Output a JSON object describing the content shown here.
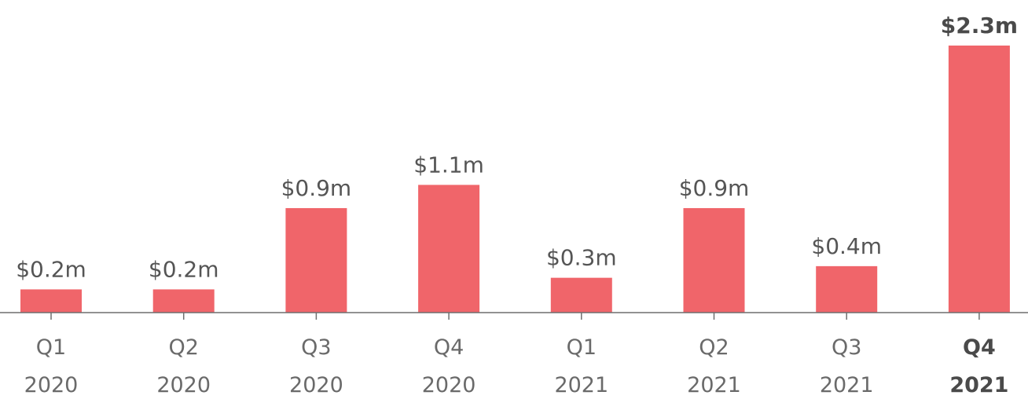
{
  "chart_data": {
    "type": "bar",
    "categories": [
      {
        "quarter": "Q1",
        "year": "2020"
      },
      {
        "quarter": "Q2",
        "year": "2020"
      },
      {
        "quarter": "Q3",
        "year": "2020"
      },
      {
        "quarter": "Q4",
        "year": "2020"
      },
      {
        "quarter": "Q1",
        "year": "2021"
      },
      {
        "quarter": "Q2",
        "year": "2021"
      },
      {
        "quarter": "Q3",
        "year": "2021"
      },
      {
        "quarter": "Q4",
        "year": "2021"
      }
    ],
    "values": [
      0.2,
      0.2,
      0.9,
      1.1,
      0.3,
      0.9,
      0.4,
      2.3
    ],
    "value_labels": [
      "$0.2m",
      "$0.2m",
      "$0.9m",
      "$1.1m",
      "$0.3m",
      "$0.9m",
      "$0.4m",
      "$2.3m"
    ],
    "highlighted_index": 7,
    "ylim": [
      0,
      2.3
    ],
    "title": "",
    "xlabel": "",
    "ylabel": "",
    "grid": false,
    "colors": {
      "bar": "#f0656a",
      "axis": "#6f6f6f",
      "text": "#555555",
      "highlight_text": "#4a4a4a"
    }
  }
}
